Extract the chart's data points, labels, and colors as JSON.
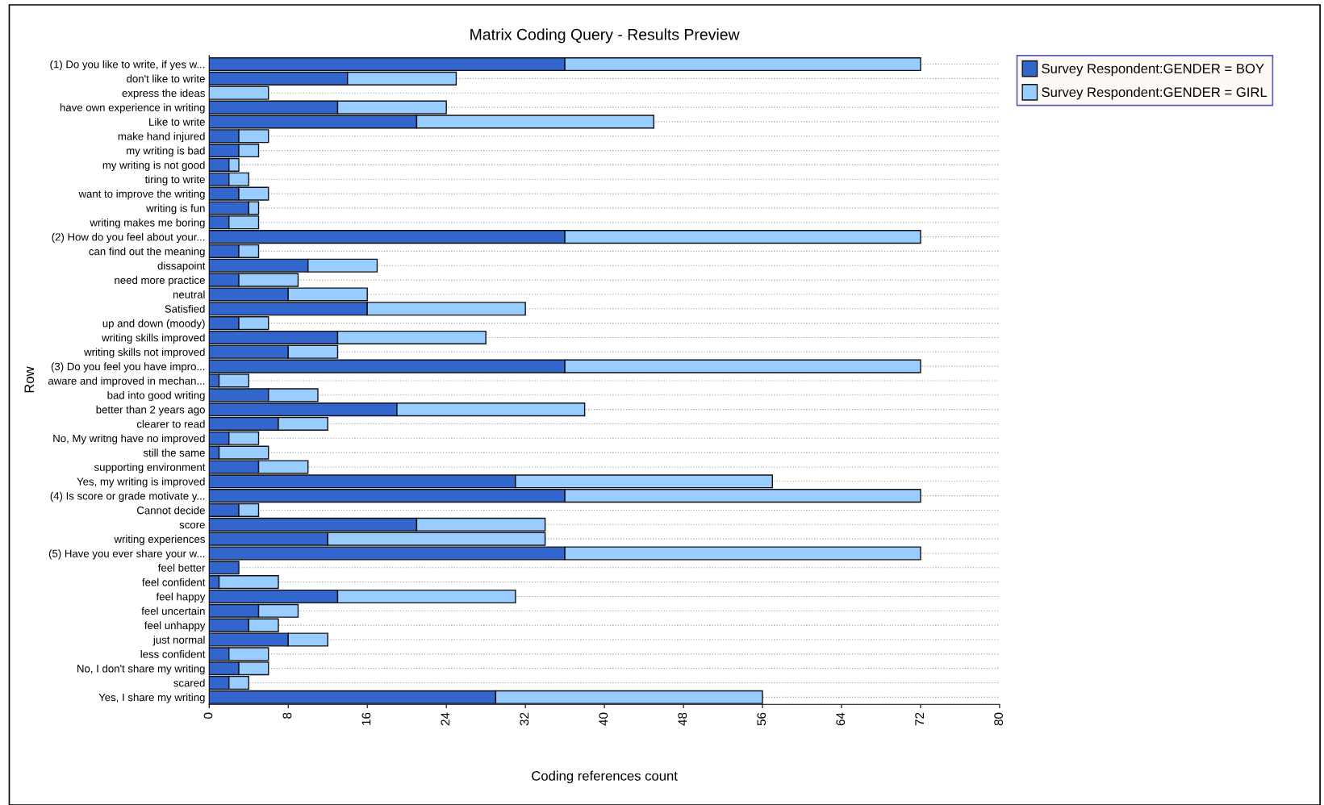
{
  "chart_data": {
    "type": "bar",
    "orientation": "horizontal",
    "stacked": true,
    "title": "Matrix Coding Query - Results Preview",
    "xlabel": "Coding references count",
    "ylabel": "Row",
    "categories": [
      "(1) Do you like to write, if yes w...",
      "don't like to write",
      "express the ideas",
      "have own experience in writing",
      "Like to write",
      "make hand injured",
      "my writing is bad",
      "my writing is not good",
      "tiring to write",
      "want to improve the writing",
      "writing is fun",
      "writing makes me boring",
      "(2) How do you feel about your...",
      "can find out the meaning",
      "dissapoint",
      "need more practice",
      "neutral",
      "Satisfied",
      "up and down (moody)",
      "writing skills improved",
      "writing skills not improved",
      "(3) Do you feel you have impro...",
      "aware and improved in mechan...",
      "bad into good writing",
      "better than 2 years ago",
      "clearer to read",
      "No, My writng have no improved",
      "still the same",
      "supporting environment",
      "Yes, my writing is improved",
      "(4) Is score or grade motivate y...",
      "Cannot decide",
      "score",
      "writing experiences",
      "(5) Have you ever share your w...",
      "feel better",
      "feel confident",
      "feel happy",
      "feel uncertain",
      "feel unhappy",
      "just normal",
      "less confident",
      "No, I don't share my writing",
      "scared",
      "Yes, I share my writing"
    ],
    "series": [
      {
        "name": "Survey Respondent:GENDER = BOY",
        "color": "#3366cc",
        "values": [
          36,
          14,
          0,
          13,
          21,
          3,
          3,
          2,
          2,
          3,
          4,
          2,
          36,
          3,
          10,
          3,
          8,
          16,
          3,
          13,
          8,
          36,
          1,
          6,
          19,
          7,
          2,
          1,
          5,
          31,
          36,
          3,
          21,
          12,
          36,
          3,
          1,
          13,
          5,
          4,
          8,
          2,
          3,
          2,
          29
        ]
      },
      {
        "name": "Survey Respondent:GENDER = GIRL",
        "color": "#99ccff",
        "values": [
          36,
          11,
          6,
          11,
          24,
          3,
          2,
          1,
          2,
          3,
          1,
          3,
          36,
          2,
          7,
          6,
          8,
          16,
          3,
          15,
          5,
          36,
          3,
          5,
          19,
          5,
          3,
          5,
          5,
          26,
          36,
          2,
          13,
          22,
          36,
          0,
          6,
          18,
          4,
          3,
          4,
          4,
          3,
          2,
          27
        ]
      }
    ],
    "xlim": [
      0,
      80
    ],
    "xticks": [
      0,
      8,
      16,
      24,
      32,
      40,
      48,
      56,
      64,
      72,
      80
    ],
    "grid": "y",
    "legend": "right"
  }
}
